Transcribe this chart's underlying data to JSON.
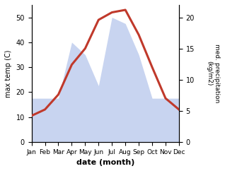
{
  "months": [
    "Jan",
    "Feb",
    "Mar",
    "Apr",
    "May",
    "Jun",
    "Jul",
    "Aug",
    "Sep",
    "Oct",
    "Nov",
    "Dec"
  ],
  "temp": [
    10.5,
    13.0,
    19.0,
    31.0,
    37.5,
    49.0,
    52.0,
    53.0,
    43.0,
    30.0,
    17.5,
    13.0
  ],
  "precip": [
    7,
    7,
    7,
    16,
    14,
    9,
    20,
    19,
    14,
    7,
    7,
    7
  ],
  "temp_color": "#c0392b",
  "precip_color": "#c8d4f0",
  "ylabel_left": "max temp (C)",
  "ylabel_right": "med. precipitation\n(kg/m2)",
  "xlabel": "date (month)",
  "ylim_left": [
    0,
    55
  ],
  "ylim_right": [
    0,
    22
  ],
  "temp_lw": 2.2,
  "bg_color": "#ffffff"
}
